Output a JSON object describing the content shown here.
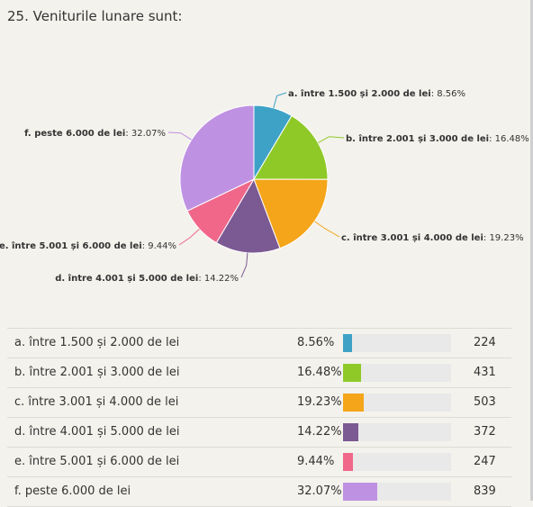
{
  "title": "25. Veniturile lunare sunt:",
  "chart_data": {
    "type": "pie",
    "slices": [
      {
        "key": "a",
        "label": "a. între 1.500 și 2.000 de lei",
        "pct_text": "8.56%",
        "value": 8.56,
        "count": 224,
        "color": "#3ea2c6"
      },
      {
        "key": "b",
        "label": "b. între 2.001 și 3.000 de lei",
        "pct_text": "16.48%",
        "value": 16.48,
        "count": 431,
        "color": "#8fc928"
      },
      {
        "key": "c",
        "label": "c. între 3.001 și 4.000 de lei",
        "pct_text": "19.23%",
        "value": 19.23,
        "count": 503,
        "color": "#f4a519"
      },
      {
        "key": "d",
        "label": "d. între 4.001 și 5.000 de lei",
        "pct_text": "14.22%",
        "value": 14.22,
        "count": 372,
        "color": "#7b5a93"
      },
      {
        "key": "e",
        "label": "e. între 5.001 și 6.000 de lei",
        "pct_text": "9.44%",
        "value": 9.44,
        "count": 247,
        "color": "#f0678a"
      },
      {
        "key": "f",
        "label": "f. peste 6.000 de lei",
        "pct_text": "32.07%",
        "value": 32.07,
        "count": 839,
        "color": "#bf91e2"
      }
    ]
  }
}
